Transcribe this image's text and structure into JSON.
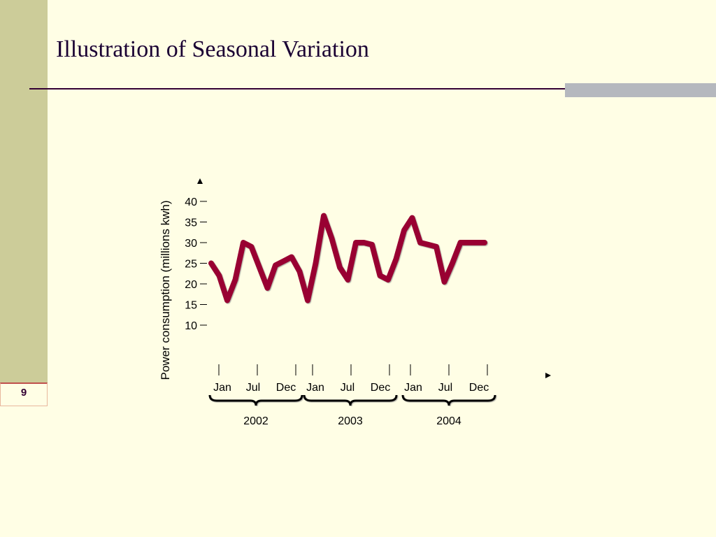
{
  "slide": {
    "title": "Illustration of Seasonal Variation",
    "number": "9"
  },
  "colors": {
    "background": "#FFFEE5",
    "sidebar": "#CCCC99",
    "line": "#990033",
    "title_rule": "#330033",
    "accent_bar": "#B5B8BE"
  },
  "chart_data": {
    "type": "line",
    "ylabel": "Power consumption (millions kwh)",
    "xlabel": "",
    "yticks": [
      10,
      15,
      20,
      25,
      30,
      35,
      40
    ],
    "ylim": [
      0,
      40
    ],
    "month_labels": [
      [
        "Jan",
        "Jul",
        "Dec"
      ],
      [
        "Jan",
        "Jul",
        "Dec"
      ],
      [
        "Jan",
        "Jul",
        "Dec"
      ]
    ],
    "years": [
      "2002",
      "2003",
      "2004"
    ],
    "grid": false,
    "series": [
      {
        "x": [
          "2002-01",
          "2002-02",
          "2002-03",
          "2002-04",
          "2002-05",
          "2002-06",
          "2002-07",
          "2002-08",
          "2002-09",
          "2002-10",
          "2002-11",
          "2002-12",
          "2003-01",
          "2003-02",
          "2003-03",
          "2003-04",
          "2003-05",
          "2003-06",
          "2003-07",
          "2003-08",
          "2003-09",
          "2003-10",
          "2003-11",
          "2003-12",
          "2004-01",
          "2004-02",
          "2004-03",
          "2004-04",
          "2004-05",
          "2004-06",
          "2004-07",
          "2004-08",
          "2004-09",
          "2004-10",
          "2004-11",
          "2004-12"
        ],
        "values": [
          25,
          22,
          16,
          21,
          30,
          29,
          24,
          19,
          24.5,
          25.5,
          26.5,
          23,
          16,
          25,
          36.5,
          31,
          24,
          21,
          30,
          30,
          29.5,
          22,
          21,
          26,
          33,
          36,
          30,
          29.5,
          29,
          20.5,
          25,
          30,
          30,
          30,
          30,
          30
        ]
      }
    ]
  }
}
